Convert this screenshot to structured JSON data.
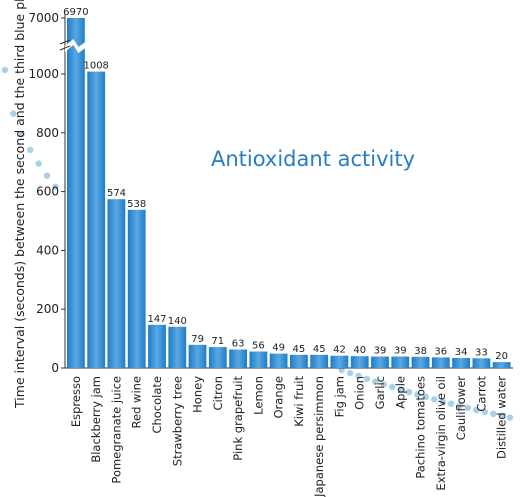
{
  "chart_data": {
    "type": "bar",
    "title": "Antioxidant activity",
    "ylabel": "Time interval (seconds) between the second and the third blue phase",
    "ylim": [
      0,
      1200
    ],
    "axis_break": {
      "from": 1200,
      "to": 7000
    },
    "y_ticks": [
      0,
      200,
      400,
      600,
      800,
      1000,
      7000
    ],
    "grid": false,
    "categories": [
      "Espresso",
      "Blackberry jam",
      "Pomegranate juice",
      "Red wine",
      "Chocolate",
      "Strawberry tree",
      "Honey",
      "Citron",
      "Pink grapefruit",
      "Lemon",
      "Orange",
      "Kiwi fruit",
      "Japanese persimmon",
      "Fig jam",
      "Onion",
      "Garlic",
      "Apple",
      "Pachino tomatoes",
      "Extra-virgin olive oil",
      "Cauliflower",
      "Carrot",
      "Distilled water"
    ],
    "values": [
      6970,
      1008,
      574,
      538,
      147,
      140,
      79,
      71,
      63,
      56,
      49,
      45,
      45,
      42,
      40,
      39,
      39,
      38,
      36,
      34,
      33,
      20
    ],
    "value_labels": [
      "6970",
      "1008",
      "574",
      "538",
      "147",
      "140",
      "79",
      "71",
      "63",
      "56",
      "49",
      "45",
      "45",
      "42",
      "40",
      "39",
      "39",
      "38",
      "36",
      "34",
      "33",
      "20"
    ],
    "bar_color": "#1f7cc6",
    "bar_highlight": "#5aa8e3",
    "title_color": "#2a7cc0",
    "dot_color": "#a9d0ea"
  }
}
